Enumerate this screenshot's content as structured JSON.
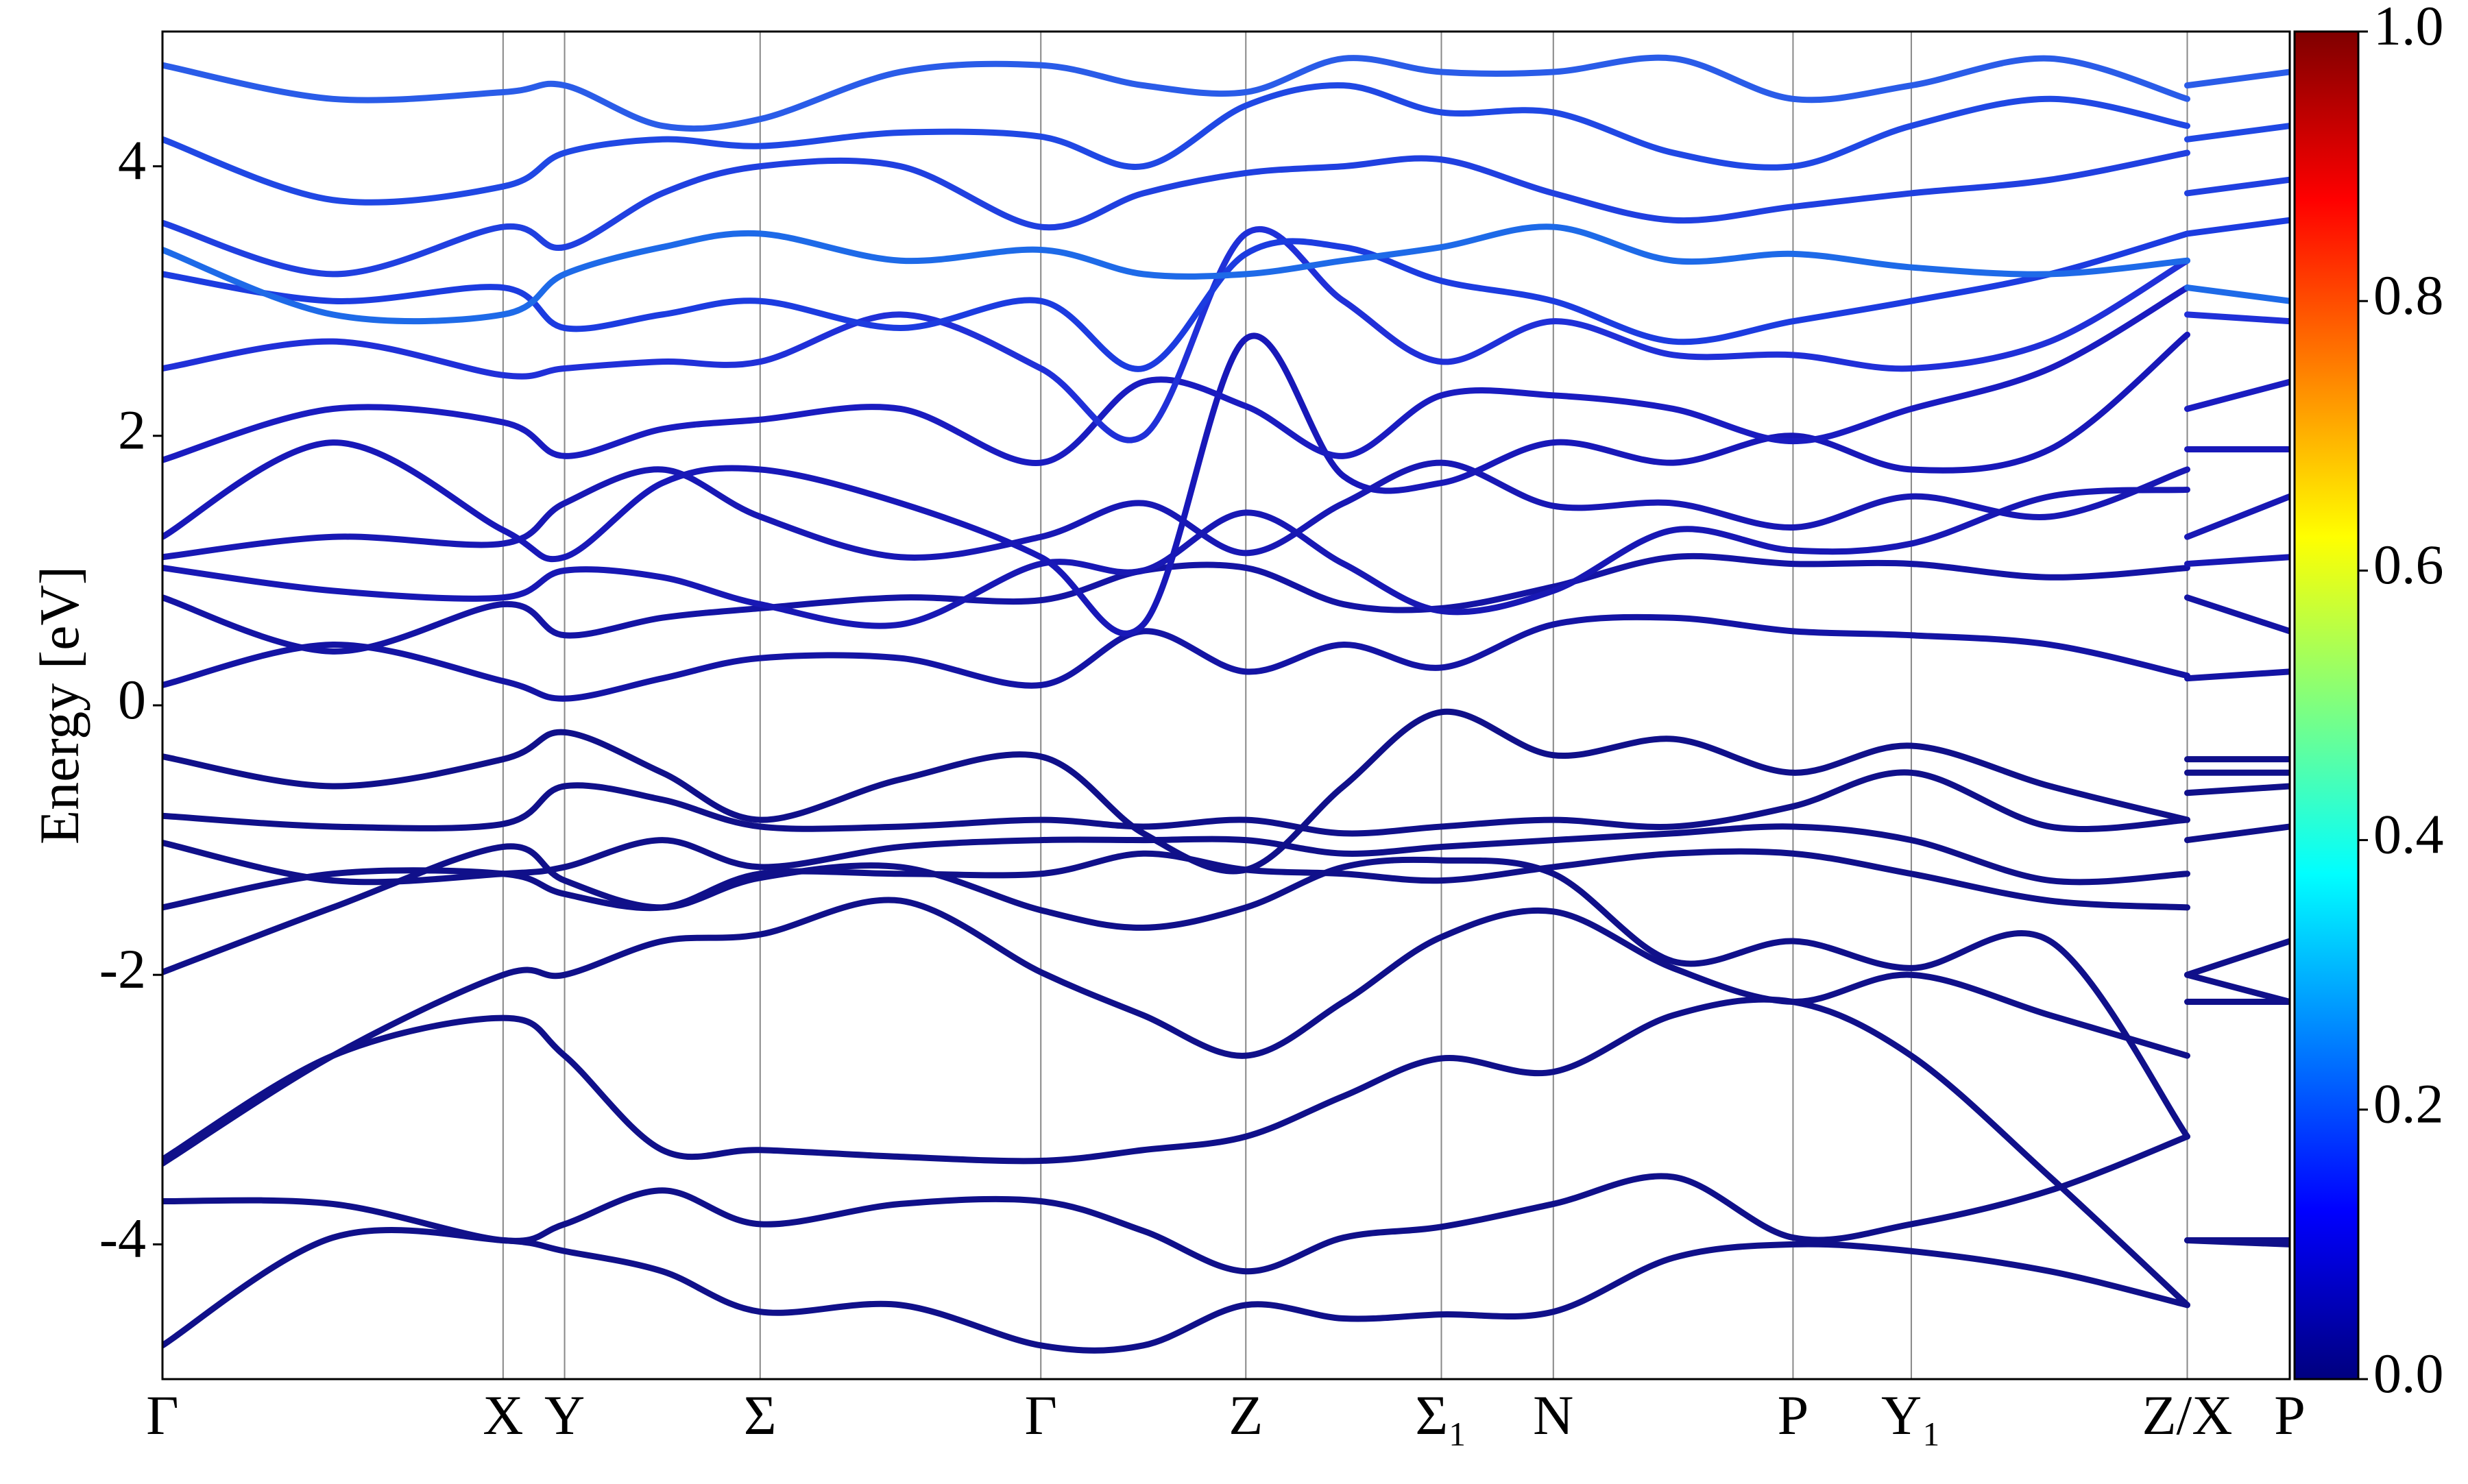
{
  "chart_data": {
    "type": "line",
    "ylabel": "Energy [eV]",
    "x": [
      0,
      1.08,
      2.16,
      2.55,
      3.17,
      3.79,
      4.68,
      5.57,
      6.22,
      6.87,
      7.49,
      8.11,
      8.82,
      9.58,
      10.34,
      11.09,
      11.97,
      12.84,
      12.84,
      13.49
    ],
    "xlim": [
      0,
      13.49
    ],
    "xticks": [
      {
        "value": 0,
        "label": "Γ"
      },
      {
        "value": 2.16,
        "label": "X"
      },
      {
        "value": 2.55,
        "label": "Y"
      },
      {
        "value": 3.79,
        "label": "Σ"
      },
      {
        "value": 5.57,
        "label": "Γ"
      },
      {
        "value": 6.87,
        "label": "Z"
      },
      {
        "value": 8.11,
        "label": "Σ₁"
      },
      {
        "value": 8.82,
        "label": "N"
      },
      {
        "value": 10.34,
        "label": "P"
      },
      {
        "value": 11.09,
        "label": "Y₁"
      },
      {
        "value": 12.84,
        "label": "Z/X"
      },
      {
        "value": 13.49,
        "label": "P"
      }
    ],
    "ylim": [
      -5,
      5
    ],
    "yticks": [
      -4,
      -2,
      0,
      2,
      4
    ],
    "colorbar": {
      "cmap": "jet",
      "lim": [
        0,
        1
      ],
      "ticks": [
        {
          "value": 0,
          "label": "0.0"
        },
        {
          "value": 0.2,
          "label": "0.2"
        },
        {
          "value": 0.4,
          "label": "0.4"
        },
        {
          "value": 0.6,
          "label": "0.6"
        },
        {
          "value": 0.8,
          "label": "0.8"
        },
        {
          "value": 1,
          "label": "1.0"
        }
      ]
    },
    "series": [
      {
        "color": "#10108a",
        "values": [
          -4.75,
          -3.95,
          -3.97,
          -4.05,
          -4.2,
          -4.5,
          -4.45,
          -4.75,
          -4.75,
          -4.45,
          -4.55,
          -4.52,
          -4.5,
          -4.1,
          -4.0,
          -4.05,
          -4.2,
          -4.45,
          -3.97,
          -4.0
        ]
      },
      {
        "color": "#10108a",
        "values": [
          -3.68,
          -3.7,
          -3.97,
          -3.85,
          -3.6,
          -3.85,
          -3.7,
          -3.68,
          -3.9,
          -4.2,
          -3.95,
          -3.87,
          -3.7,
          -3.5,
          -3.95,
          -3.85,
          -3.6,
          -3.2,
          -2.0,
          -2.2
        ]
      },
      {
        "color": "#10108a",
        "values": [
          -3.37,
          -2.6,
          -2.32,
          -2.6,
          -3.3,
          -3.3,
          -3.35,
          -3.38,
          -3.3,
          -3.2,
          -2.9,
          -2.62,
          -2.72,
          -2.3,
          -2.2,
          -2.6,
          -3.5,
          -4.45,
          -3.97,
          -3.97
        ]
      },
      {
        "color": "#10108a",
        "values": [
          -3.4,
          -2.6,
          -2.0,
          -2.0,
          -1.75,
          -1.7,
          -1.45,
          -1.98,
          -2.3,
          -2.6,
          -2.2,
          -1.72,
          -1.53,
          -1.95,
          -2.2,
          -2.0,
          -2.3,
          -2.6,
          -2.2,
          -2.2
        ]
      },
      {
        "color": "#10108a",
        "values": [
          -1.98,
          -1.5,
          -1.05,
          -1.3,
          -1.5,
          -1.28,
          -1.2,
          -1.52,
          -1.65,
          -1.5,
          -1.2,
          -1.15,
          -1.25,
          -1.9,
          -1.75,
          -1.95,
          -1.75,
          -3.2,
          -2.0,
          -1.75
        ]
      },
      {
        "color": "#10108a",
        "values": [
          -1.5,
          -1.25,
          -1.25,
          -1.4,
          -1.5,
          -1.25,
          -1.25,
          -1.25,
          -1.1,
          -1.22,
          -1.25,
          -1.3,
          -1.2,
          -1.1,
          -1.1,
          -1.25,
          -1.45,
          -1.5,
          -1.0,
          -0.9
        ]
      },
      {
        "color": "#10108a",
        "values": [
          -1.02,
          -1.3,
          -1.25,
          -1.2,
          -1.0,
          -1.2,
          -1.05,
          -1.0,
          -1.0,
          -1.0,
          -1.1,
          -1.05,
          -1.0,
          -0.95,
          -0.9,
          -1.0,
          -1.3,
          -1.25,
          -0.65,
          -0.6
        ]
      },
      {
        "color": "#10108a",
        "values": [
          -0.82,
          -0.9,
          -0.88,
          -0.6,
          -0.7,
          -0.9,
          -0.9,
          -0.85,
          -0.9,
          -0.85,
          -0.95,
          -0.9,
          -0.85,
          -0.9,
          -0.75,
          -0.5,
          -0.9,
          -0.85,
          -0.5,
          -0.5
        ]
      },
      {
        "color": "#10108a",
        "values": [
          -0.38,
          -0.6,
          -0.4,
          -0.2,
          -0.5,
          -0.85,
          -0.55,
          -0.38,
          -0.95,
          -1.22,
          -0.6,
          -0.05,
          -0.37,
          -0.25,
          -0.5,
          -0.3,
          -0.6,
          -0.85,
          -0.4,
          -0.4
        ]
      },
      {
        "color": "#1414a4",
        "values": [
          0.15,
          0.45,
          0.18,
          0.05,
          0.2,
          0.35,
          0.35,
          0.15,
          0.55,
          0.25,
          0.45,
          0.28,
          0.6,
          0.65,
          0.55,
          0.52,
          0.45,
          0.22,
          0.2,
          0.25
        ]
      },
      {
        "color": "#1414a4",
        "values": [
          0.8,
          0.4,
          0.75,
          0.52,
          0.65,
          0.72,
          0.8,
          0.78,
          1.0,
          1.02,
          0.75,
          0.72,
          0.88,
          1.1,
          1.05,
          1.05,
          0.95,
          1.02,
          0.8,
          0.55
        ]
      },
      {
        "color": "#1818b4",
        "values": [
          1.02,
          0.85,
          0.8,
          1.0,
          0.95,
          0.75,
          0.6,
          1.05,
          1.0,
          1.43,
          1.05,
          0.7,
          0.85,
          1.3,
          1.15,
          1.2,
          1.55,
          1.6,
          1.05,
          1.1
        ]
      },
      {
        "color": "#1818b4",
        "values": [
          1.1,
          1.25,
          1.2,
          1.5,
          1.75,
          1.4,
          1.1,
          1.25,
          1.5,
          1.13,
          1.5,
          1.8,
          1.48,
          1.5,
          1.32,
          1.55,
          1.4,
          1.75,
          1.25,
          1.55
        ]
      },
      {
        "color": "#1818b8",
        "values": [
          1.25,
          1.95,
          1.3,
          1.1,
          1.65,
          1.75,
          1.5,
          1.1,
          0.6,
          2.72,
          1.7,
          1.65,
          1.95,
          1.8,
          2.0,
          1.75,
          1.9,
          2.75,
          1.9,
          1.9
        ]
      },
      {
        "color": "#1a1cc0",
        "values": [
          1.82,
          2.2,
          2.1,
          1.85,
          2.05,
          2.12,
          2.2,
          1.8,
          2.4,
          2.22,
          1.85,
          2.3,
          2.3,
          2.2,
          1.96,
          2.2,
          2.5,
          3.1,
          2.2,
          2.4
        ]
      },
      {
        "color": "#2030d8",
        "values": [
          2.5,
          2.7,
          2.45,
          2.5,
          2.55,
          2.55,
          2.9,
          2.5,
          2.0,
          3.5,
          3.0,
          2.55,
          2.85,
          2.6,
          2.6,
          2.5,
          2.7,
          3.3,
          2.9,
          2.85
        ]
      },
      {
        "color": "#1c3ce0",
        "values": [
          3.2,
          3.0,
          3.1,
          2.8,
          2.9,
          3.0,
          2.8,
          3.0,
          2.5,
          3.35,
          3.4,
          3.15,
          3.0,
          2.7,
          2.85,
          3.0,
          3.2,
          3.5,
          3.5,
          3.6
        ]
      },
      {
        "color": "#1e6ae8",
        "values": [
          3.38,
          2.9,
          2.9,
          3.2,
          3.4,
          3.5,
          3.3,
          3.38,
          3.2,
          3.2,
          3.3,
          3.4,
          3.55,
          3.3,
          3.35,
          3.25,
          3.2,
          3.3,
          3.1,
          3.0
        ]
      },
      {
        "color": "#2040e0",
        "values": [
          3.58,
          3.2,
          3.55,
          3.4,
          3.8,
          4.0,
          4.0,
          3.55,
          3.8,
          3.95,
          4.0,
          4.05,
          3.8,
          3.6,
          3.7,
          3.8,
          3.9,
          4.1,
          3.8,
          3.9
        ]
      },
      {
        "color": "#2048e4",
        "values": [
          4.2,
          3.75,
          3.85,
          4.1,
          4.2,
          4.15,
          4.25,
          4.22,
          4.0,
          4.45,
          4.6,
          4.4,
          4.4,
          4.1,
          4.0,
          4.3,
          4.5,
          4.3,
          4.2,
          4.3
        ]
      },
      {
        "color": "#2a5ce8",
        "values": [
          4.75,
          4.5,
          4.55,
          4.6,
          4.3,
          4.35,
          4.7,
          4.75,
          4.6,
          4.55,
          4.8,
          4.7,
          4.7,
          4.8,
          4.5,
          4.6,
          4.8,
          4.5,
          4.6,
          4.7
        ]
      }
    ]
  }
}
